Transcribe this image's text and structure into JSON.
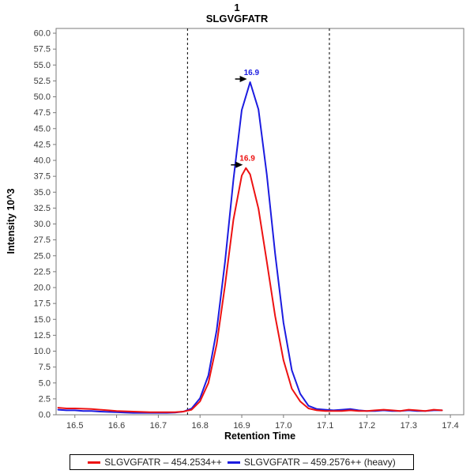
{
  "chart_data": {
    "type": "line",
    "title": "1",
    "subtitle": "SLGVGFATR",
    "xlabel": "Retention Time",
    "ylabel": "Intensity 10^3",
    "xlim": [
      16.455,
      17.432
    ],
    "ylim": [
      0,
      60.75
    ],
    "x_ticks": [
      16.5,
      16.6,
      16.7,
      16.8,
      16.9,
      17.0,
      17.1,
      17.2,
      17.3,
      17.4
    ],
    "y_ticks": [
      0.0,
      2.5,
      5.0,
      7.5,
      10.0,
      12.5,
      15.0,
      17.5,
      20.0,
      22.5,
      25.0,
      27.5,
      30.0,
      32.5,
      35.0,
      37.5,
      40.0,
      42.5,
      45.0,
      47.5,
      50.0,
      52.5,
      55.0,
      57.5,
      60.0
    ],
    "grid": false,
    "legend_position": "bottom",
    "integration_boundaries": [
      16.77,
      17.11
    ],
    "series": [
      {
        "name": "SLGVGFATR – 454.2534++",
        "color": "#ed1212",
        "peak_label": "16.9",
        "peak_rt": 16.91,
        "peak_height": 38.8,
        "x": [
          16.46,
          16.48,
          16.5,
          16.52,
          16.54,
          16.56,
          16.58,
          16.6,
          16.62,
          16.64,
          16.66,
          16.68,
          16.7,
          16.72,
          16.74,
          16.76,
          16.78,
          16.8,
          16.82,
          16.84,
          16.86,
          16.88,
          16.9,
          16.91,
          16.92,
          16.94,
          16.96,
          16.98,
          17.0,
          17.02,
          17.04,
          17.06,
          17.08,
          17.1,
          17.12,
          17.14,
          17.16,
          17.18,
          17.2,
          17.22,
          17.24,
          17.26,
          17.28,
          17.3,
          17.32,
          17.34,
          17.36,
          17.38
        ],
        "y": [
          1.1,
          1.0,
          1.0,
          0.95,
          0.9,
          0.8,
          0.7,
          0.6,
          0.55,
          0.5,
          0.45,
          0.4,
          0.4,
          0.4,
          0.4,
          0.5,
          0.8,
          2.1,
          5.0,
          11.1,
          20.4,
          30.7,
          37.6,
          38.8,
          37.8,
          32.4,
          24.1,
          15.5,
          8.6,
          4.1,
          2.1,
          1.0,
          0.7,
          0.6,
          0.6,
          0.6,
          0.7,
          0.6,
          0.6,
          0.7,
          0.8,
          0.7,
          0.6,
          0.8,
          0.7,
          0.6,
          0.8,
          0.7
        ]
      },
      {
        "name": "SLGVGFATR – 459.2576++ (heavy)",
        "color": "#1c1ce0",
        "peak_label": "16.9",
        "peak_rt": 16.92,
        "peak_height": 52.3,
        "x": [
          16.46,
          16.48,
          16.5,
          16.52,
          16.54,
          16.56,
          16.58,
          16.6,
          16.62,
          16.64,
          16.66,
          16.68,
          16.7,
          16.72,
          16.74,
          16.76,
          16.78,
          16.8,
          16.82,
          16.84,
          16.86,
          16.88,
          16.9,
          16.92,
          16.94,
          16.96,
          16.98,
          17.0,
          17.02,
          17.04,
          17.06,
          17.08,
          17.1,
          17.12,
          17.14,
          17.16,
          17.18,
          17.2,
          17.22,
          17.24,
          17.26,
          17.28,
          17.3,
          17.32,
          17.34,
          17.36,
          17.38
        ],
        "y": [
          0.8,
          0.7,
          0.7,
          0.6,
          0.6,
          0.5,
          0.45,
          0.4,
          0.35,
          0.3,
          0.3,
          0.3,
          0.3,
          0.3,
          0.35,
          0.5,
          1.0,
          2.6,
          6.2,
          13.3,
          24.1,
          37.0,
          47.9,
          52.3,
          48.0,
          37.8,
          25.3,
          14.5,
          7.0,
          3.3,
          1.4,
          0.9,
          0.8,
          0.7,
          0.8,
          0.9,
          0.7,
          0.6,
          0.6,
          0.7,
          0.6,
          0.6,
          0.7,
          0.6,
          0.6,
          0.7,
          0.7
        ]
      }
    ]
  },
  "colors": {
    "frame": "#7a7a7a",
    "tick_text": "#3a3a3a",
    "boundary_line": "#000000",
    "annotation_arrow": "#000000",
    "legend_border": "#000000",
    "background": "#ffffff"
  }
}
